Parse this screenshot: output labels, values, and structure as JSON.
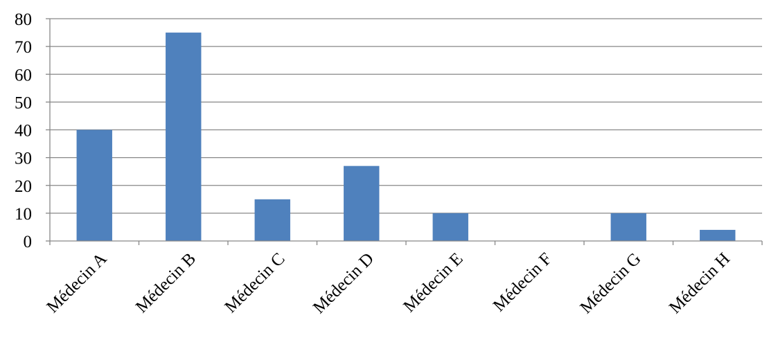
{
  "chart_data": {
    "type": "bar",
    "title": "",
    "xlabel": "",
    "ylabel": "",
    "categories": [
      "Médecin A",
      "Médecin B",
      "Médecin C",
      "Médecin D",
      "Médecin E",
      "Médecin F",
      "Médecin G",
      "Médecin H"
    ],
    "values": [
      40,
      75,
      15,
      27,
      10,
      0,
      10,
      4
    ],
    "ylim": [
      0,
      80
    ],
    "yticks": [
      0,
      10,
      20,
      30,
      40,
      50,
      60,
      70,
      80
    ],
    "grid": true,
    "legend": "none",
    "bar_color": "#4f81bd",
    "grid_color": "#878787"
  }
}
